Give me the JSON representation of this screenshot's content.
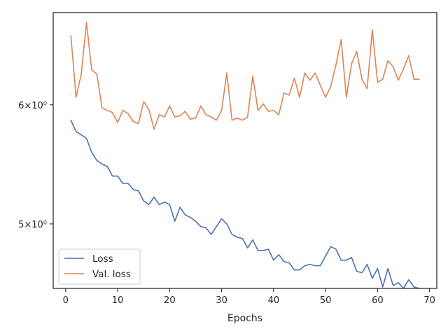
{
  "chart_data": {
    "type": "line",
    "xlabel": "Epochs",
    "ylabel": "",
    "y_scale": "log",
    "xlim": [
      -2.4,
      71.4
    ],
    "ylim": [
      4.53,
      6.91
    ],
    "x_ticks": [
      0,
      10,
      20,
      30,
      40,
      50,
      60,
      70
    ],
    "x_tick_labels": [
      "0",
      "10",
      "20",
      "30",
      "40",
      "50",
      "60",
      "70"
    ],
    "y_ticks": [
      5,
      6
    ],
    "y_tick_labels": [
      "5×10⁰",
      "6×10⁰"
    ],
    "legend_position": "lower-left",
    "series": [
      {
        "name": "Loss",
        "color": "#4c72b0",
        "x": [
          1,
          2,
          3,
          4,
          5,
          6,
          7,
          8,
          9,
          10,
          11,
          12,
          13,
          14,
          15,
          16,
          17,
          18,
          19,
          20,
          21,
          22,
          23,
          24,
          25,
          26,
          27,
          28,
          29,
          30,
          31,
          32,
          33,
          34,
          35,
          36,
          37,
          38,
          39,
          40,
          41,
          42,
          43,
          44,
          45,
          46,
          47,
          48,
          49,
          50,
          51,
          52,
          53,
          54,
          55,
          56,
          57,
          58,
          59,
          60,
          61,
          62,
          63,
          64,
          65,
          66,
          67,
          68
        ],
        "values": [
          5.86,
          5.76,
          5.73,
          5.7,
          5.58,
          5.51,
          5.48,
          5.46,
          5.38,
          5.38,
          5.32,
          5.32,
          5.27,
          5.26,
          5.18,
          5.15,
          5.21,
          5.15,
          5.17,
          5.15,
          5.02,
          5.13,
          5.07,
          5.05,
          5.02,
          4.98,
          4.97,
          4.92,
          4.98,
          5.04,
          5.0,
          4.92,
          4.9,
          4.89,
          4.82,
          4.88,
          4.8,
          4.8,
          4.81,
          4.73,
          4.77,
          4.72,
          4.71,
          4.66,
          4.66,
          4.69,
          4.7,
          4.69,
          4.69,
          4.76,
          4.83,
          4.81,
          4.73,
          4.73,
          4.75,
          4.65,
          4.64,
          4.7,
          4.6,
          4.67,
          4.54,
          4.67,
          4.55,
          4.57,
          4.53,
          4.59,
          4.54,
          4.53
        ]
      },
      {
        "name": "Val. loss",
        "color": "#dd8452",
        "x": [
          1,
          2,
          3,
          4,
          5,
          6,
          7,
          8,
          9,
          10,
          11,
          12,
          13,
          14,
          15,
          16,
          17,
          18,
          19,
          20,
          21,
          22,
          23,
          24,
          25,
          26,
          27,
          28,
          29,
          30,
          31,
          32,
          33,
          34,
          35,
          36,
          37,
          38,
          39,
          40,
          41,
          42,
          43,
          44,
          45,
          46,
          47,
          48,
          49,
          50,
          51,
          52,
          53,
          54,
          55,
          56,
          57,
          58,
          59,
          60,
          61,
          62,
          63,
          64,
          65,
          66,
          67,
          68
        ],
        "values": [
          6.67,
          6.07,
          6.29,
          6.81,
          6.33,
          6.29,
          5.97,
          5.95,
          5.93,
          5.84,
          5.95,
          5.92,
          5.85,
          5.83,
          6.03,
          5.96,
          5.78,
          5.91,
          5.89,
          5.99,
          5.89,
          5.9,
          5.94,
          5.87,
          5.88,
          5.99,
          5.91,
          5.89,
          5.86,
          5.95,
          6.3,
          5.86,
          5.88,
          5.86,
          5.89,
          6.27,
          5.95,
          6.01,
          5.94,
          5.95,
          5.91,
          6.11,
          6.09,
          6.25,
          6.07,
          6.3,
          6.23,
          6.3,
          6.18,
          6.07,
          6.17,
          6.38,
          6.63,
          6.07,
          6.39,
          6.51,
          6.24,
          6.15,
          6.73,
          6.21,
          6.24,
          6.42,
          6.36,
          6.23,
          6.34,
          6.47,
          6.24,
          6.24
        ]
      }
    ]
  }
}
